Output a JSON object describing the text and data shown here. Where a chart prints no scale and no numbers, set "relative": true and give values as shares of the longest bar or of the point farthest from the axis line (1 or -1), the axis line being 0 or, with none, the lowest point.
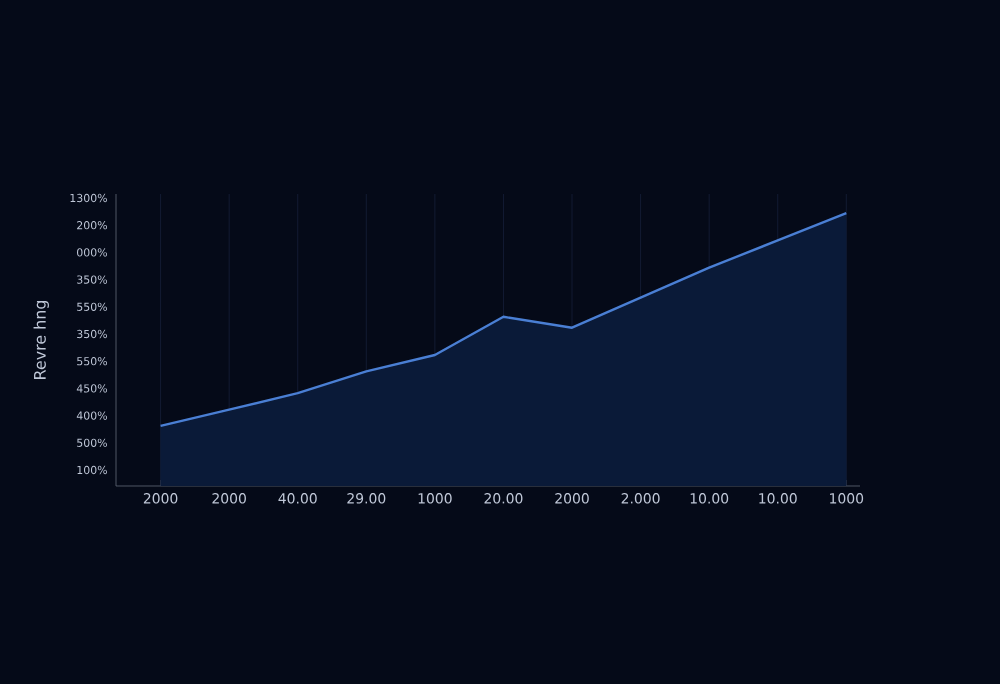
{
  "chart_data": {
    "type": "area",
    "ylabel": "Revre hng",
    "color": "#4a7fd4",
    "grid": "x",
    "relative": true,
    "categories": [
      "2000",
      "2000",
      "40.00",
      "29.00",
      "1000",
      "20.00",
      "2000",
      "2.000",
      "10.00",
      "10.00",
      "1000"
    ],
    "values": [
      0.22,
      0.28,
      0.34,
      0.42,
      0.48,
      0.62,
      0.58,
      0.69,
      0.8,
      0.9,
      1.0
    ],
    "annotations": [
      "1300%",
      "200%",
      "000%",
      "350%",
      "550%",
      "350%",
      "550%",
      "450%",
      "400%",
      "500%",
      "100%"
    ]
  }
}
